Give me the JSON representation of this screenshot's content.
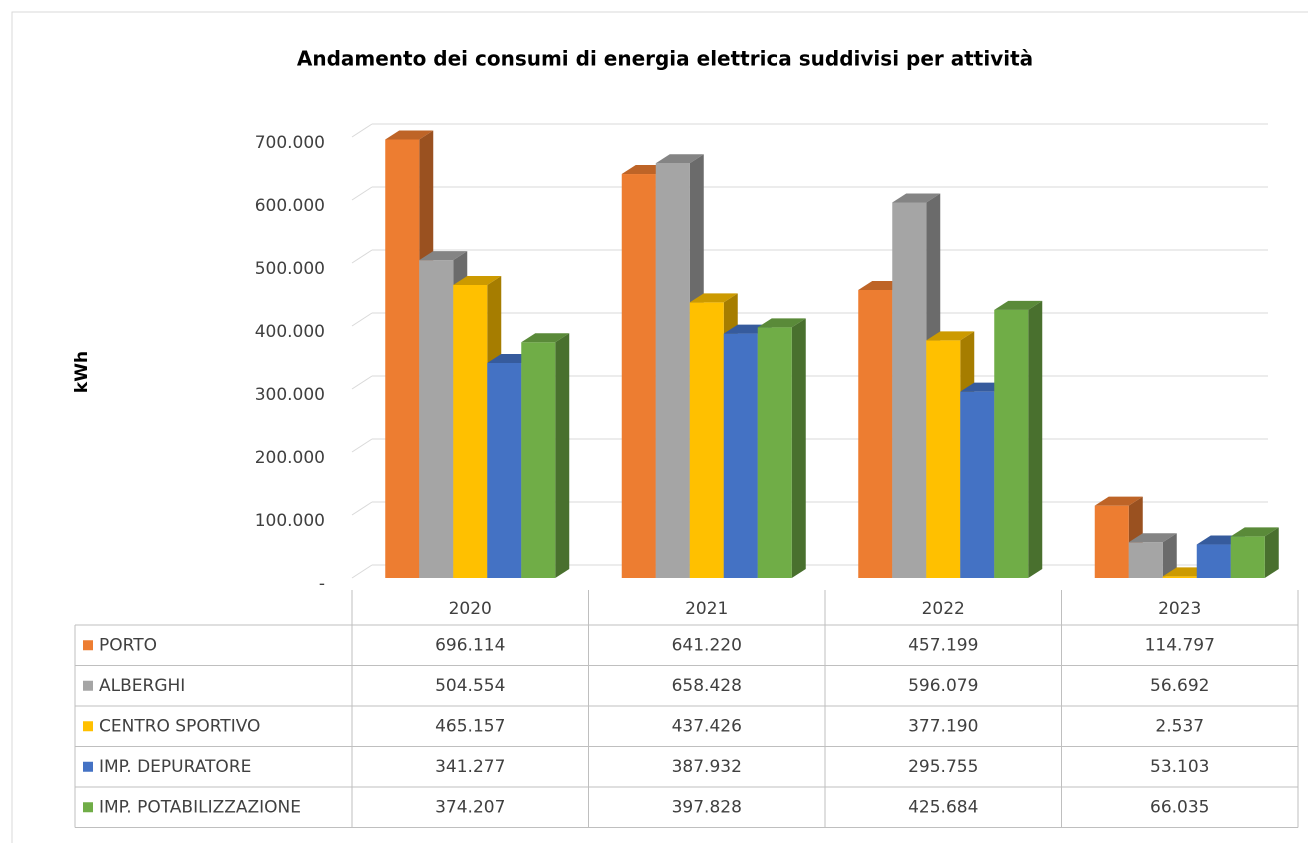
{
  "chart_data": {
    "type": "bar3d",
    "title": "Andamento dei consumi di energia elettrica suddivisi per attività",
    "y_label": "kWh",
    "categories": [
      "2020",
      "2021",
      "2022",
      "2023"
    ],
    "series": [
      {
        "name": "PORTO",
        "color": "#ED7D31",
        "values": [
          696114,
          641220,
          457199,
          114797
        ],
        "value_labels": [
          "696.114",
          "641.220",
          "457.199",
          "114.797"
        ]
      },
      {
        "name": "ALBERGHI",
        "color": "#A5A5A5",
        "values": [
          504554,
          658428,
          596079,
          56692
        ],
        "value_labels": [
          "504.554",
          "658.428",
          "596.079",
          "56.692"
        ]
      },
      {
        "name": "CENTRO SPORTIVO",
        "color": "#FFC000",
        "values": [
          465157,
          437426,
          377190,
          2537
        ],
        "value_labels": [
          "465.157",
          "437.426",
          "377.190",
          "2.537"
        ]
      },
      {
        "name": "IMP. DEPURATORE",
        "color": "#4472C4",
        "values": [
          341277,
          387932,
          295755,
          53103
        ],
        "value_labels": [
          "341.277",
          "387.932",
          "295.755",
          "53.103"
        ]
      },
      {
        "name": "IMP. POTABILIZZAZIONE",
        "color": "#70AD47",
        "values": [
          374207,
          397828,
          425684,
          66035
        ],
        "value_labels": [
          "374.207",
          "397.828",
          "425.684",
          "66.035"
        ]
      }
    ],
    "ylim": [
      0,
      700000
    ],
    "yticks": [
      {
        "value": 0,
        "label": "-"
      },
      {
        "value": 100000,
        "label": "100.000"
      },
      {
        "value": 200000,
        "label": "200.000"
      },
      {
        "value": 300000,
        "label": "300.000"
      },
      {
        "value": 400000,
        "label": "400.000"
      },
      {
        "value": 500000,
        "label": "500.000"
      },
      {
        "value": 600000,
        "label": "600.000"
      },
      {
        "value": 700000,
        "label": "700.000"
      }
    ],
    "grid": true
  }
}
